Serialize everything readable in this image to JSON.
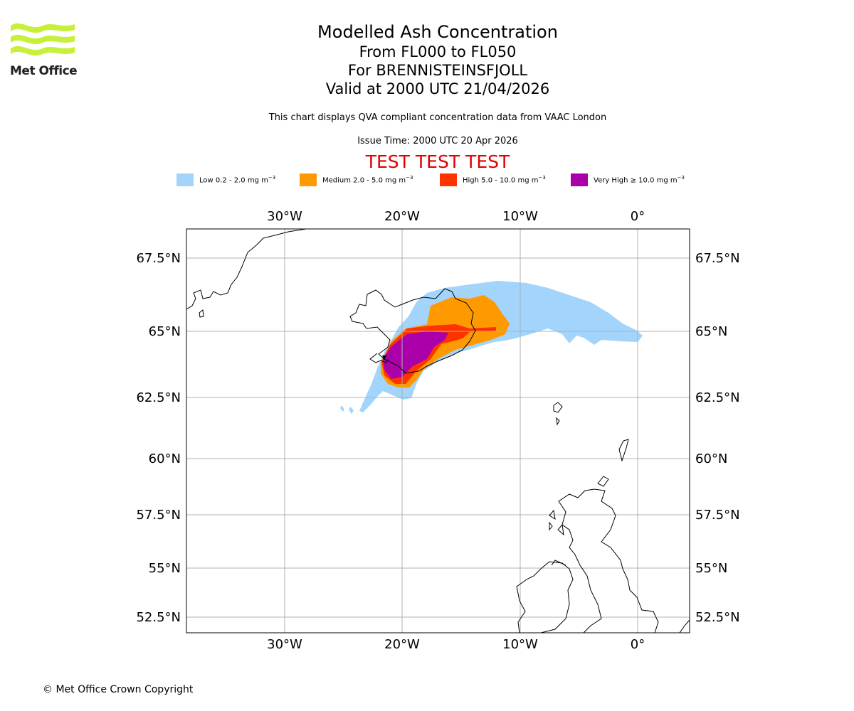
{
  "header": {
    "logo_text": "Met Office",
    "title": "Modelled Ash Concentration",
    "range": "From FL000 to FL050",
    "volcano": "For BRENNISTEINSFJOLL",
    "valid": "Valid at 2000 UTC 21/04/2026",
    "description": "This chart displays QVA compliant concentration data from VAAC London",
    "issue_time": "Issue Time: 2000 UTC 20 Apr 2026",
    "test_banner": "TEST TEST TEST"
  },
  "legend": [
    {
      "label": "Low 0.2 - 2.0 mg m",
      "color": "#a2d4fc"
    },
    {
      "label": "Medium 2.0 - 5.0 mg m",
      "color": "#ff9900"
    },
    {
      "label": "High 5.0 - 10.0 mg m",
      "color": "#ff3300"
    },
    {
      "label": "Very High ≥ 10.0 mg m",
      "color": "#aa00aa"
    }
  ],
  "legend_unit_exp": "−3",
  "map": {
    "lon_labels": [
      "30°W",
      "20°W",
      "10°W",
      "0°"
    ],
    "lat_labels": [
      "67.5°N",
      "65°N",
      "62.5°N",
      "60°N",
      "57.5°N",
      "55°N",
      "52.5°N"
    ]
  },
  "footer": {
    "copyright": "© Met Office Crown Copyright"
  }
}
